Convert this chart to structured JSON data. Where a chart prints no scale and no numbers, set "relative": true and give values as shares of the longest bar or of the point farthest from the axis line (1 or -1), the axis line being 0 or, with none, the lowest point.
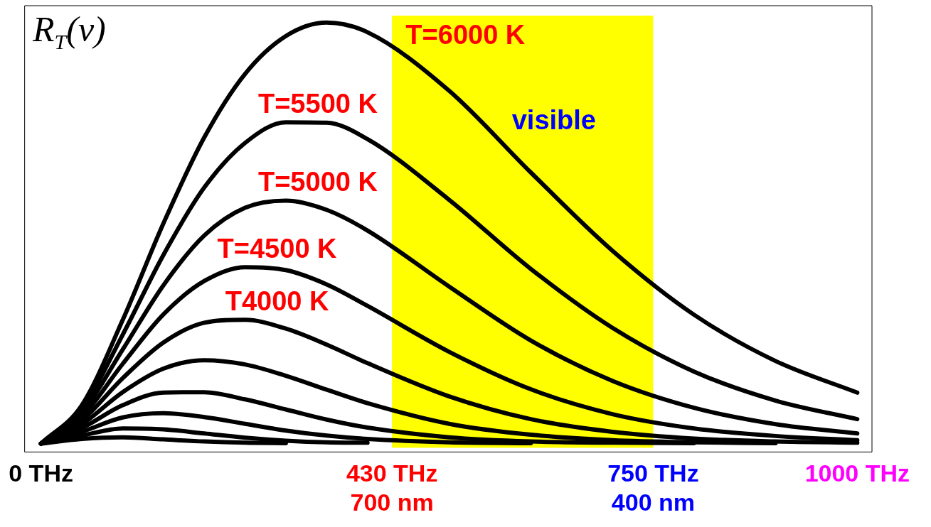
{
  "chart_data": {
    "type": "line",
    "relative": true,
    "ylabel": "R$_{T}$(ν)",
    "x": [
      0,
      50,
      100,
      150,
      200,
      250,
      300,
      350,
      400,
      500,
      600,
      700,
      800,
      900,
      1000
    ],
    "xlim": [
      -20,
      1018
    ],
    "xticks": [
      {
        "value": 0,
        "label": "0 THz"
      },
      {
        "value": 430,
        "label": "430 THz\n700 nm"
      },
      {
        "value": 750,
        "label": "750 THz\n400 nm"
      },
      {
        "value": 1000,
        "label": "1000 THz"
      }
    ],
    "series": [
      {
        "name": "T=6000 K",
        "color": "#000000",
        "values": [
          0,
          0.091,
          0.293,
          0.523,
          0.727,
          0.878,
          0.968,
          1,
          0.977,
          0.838,
          0.644,
          0.458,
          0.306,
          0.196,
          0.121
        ]
      },
      {
        "name": "T=5500 K",
        "color": "#000000",
        "values": [
          0,
          0.082,
          0.258,
          0.448,
          0.608,
          0.714,
          0.763,
          0.762,
          0.723,
          0.579,
          0.415,
          0.275,
          0.171,
          0.102,
          0.058
        ]
      },
      {
        "name": "T=5000 K",
        "color": "#000000",
        "values": [
          0,
          0.073,
          0.223,
          0.376,
          0.494,
          0.56,
          0.577,
          0.555,
          0.506,
          0.373,
          0.245,
          0.149,
          0.085,
          0.046,
          0.024
        ]
      },
      {
        "name": "T=4500 K",
        "color": "#000000",
        "values": [
          0,
          0.064,
          0.189,
          0.307,
          0.386,
          0.419,
          0.412,
          0.378,
          0.327,
          0.218,
          0.129,
          0.07,
          0.036,
          0.018,
          0.008
        ]
      },
      {
        "name": "T4000 K",
        "color": "#000000",
        "values": [
          0,
          0.055,
          0.155,
          0.24,
          0.287,
          0.294,
          0.273,
          0.235,
          0.191,
          0.112,
          0.058,
          0.028,
          0.012,
          0.005,
          0.002
        ]
      },
      {
        "color": "#000000",
        "values": [
          0,
          0.046,
          0.122,
          0.178,
          0.198,
          0.188,
          0.161,
          0.128,
          0.096,
          0.047,
          0.021,
          0.008,
          0.003,
          0.001,
          null
        ]
      },
      {
        "color": "#000000",
        "values": [
          0,
          0.037,
          0.091,
          0.121,
          0.122,
          0.105,
          0.081,
          0.057,
          0.038,
          0.015,
          0.005,
          0.002,
          0.001,
          null,
          null
        ]
      },
      {
        "color": "#000000",
        "values": [
          0,
          0.028,
          0.062,
          0.072,
          0.063,
          0.047,
          0.031,
          0.019,
          0.011,
          0.003,
          0.001,
          null,
          null,
          null,
          null
        ]
      },
      {
        "color": "#000000",
        "values": [
          0,
          0.019,
          0.036,
          0.034,
          0.024,
          0.014,
          0.007,
          0.003,
          0.002,
          null,
          null,
          null,
          null,
          null,
          null
        ]
      },
      {
        "color": "#000000",
        "values": [
          0,
          0.011,
          0.015,
          0.01,
          0.005,
          0.002,
          0.001,
          null,
          null,
          null,
          null,
          null,
          null,
          null,
          null
        ]
      }
    ],
    "bands": [
      {
        "axis": "x",
        "from": 430,
        "to": 750,
        "label": "visible",
        "color": "#ffff00"
      }
    ],
    "legend": false,
    "grid": false,
    "marker": "none",
    "line_style": "solid"
  }
}
